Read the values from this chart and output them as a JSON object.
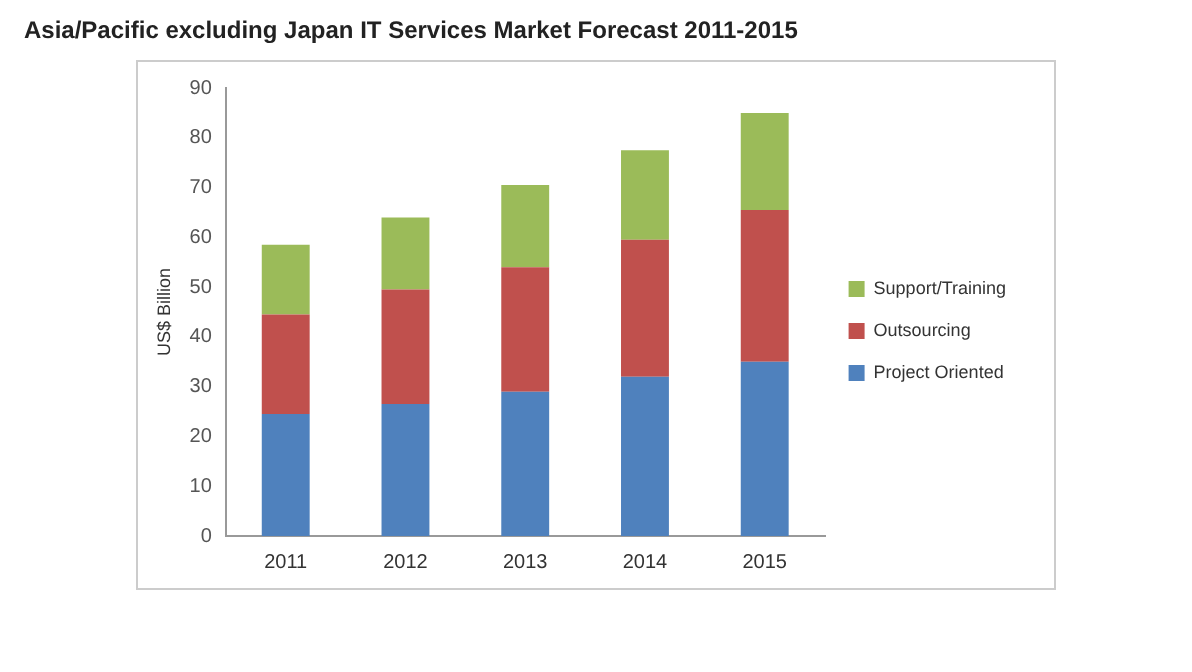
{
  "chart_data": {
    "type": "bar",
    "title": "Asia/Pacific excluding Japan IT Services Market Forecast 2011-2015",
    "ylabel": "US$ Billion",
    "categories": [
      "2011",
      "2012",
      "2013",
      "2014",
      "2015"
    ],
    "stacked": true,
    "ylim": [
      0,
      90
    ],
    "yticks": [
      0,
      10,
      20,
      30,
      40,
      50,
      60,
      70,
      80,
      90
    ],
    "grid": false,
    "legend": "right",
    "series": [
      {
        "name": "Project Oriented",
        "color": "#4f81bd",
        "values": [
          24.5,
          26.5,
          29,
          32,
          35
        ]
      },
      {
        "name": "Outsourcing",
        "color": "#c0504d",
        "values": [
          20,
          23,
          25,
          27.5,
          30.5
        ]
      },
      {
        "name": "Support/Training",
        "color": "#9bbb59",
        "values": [
          14,
          14.5,
          16.5,
          18,
          19.5
        ]
      }
    ]
  }
}
